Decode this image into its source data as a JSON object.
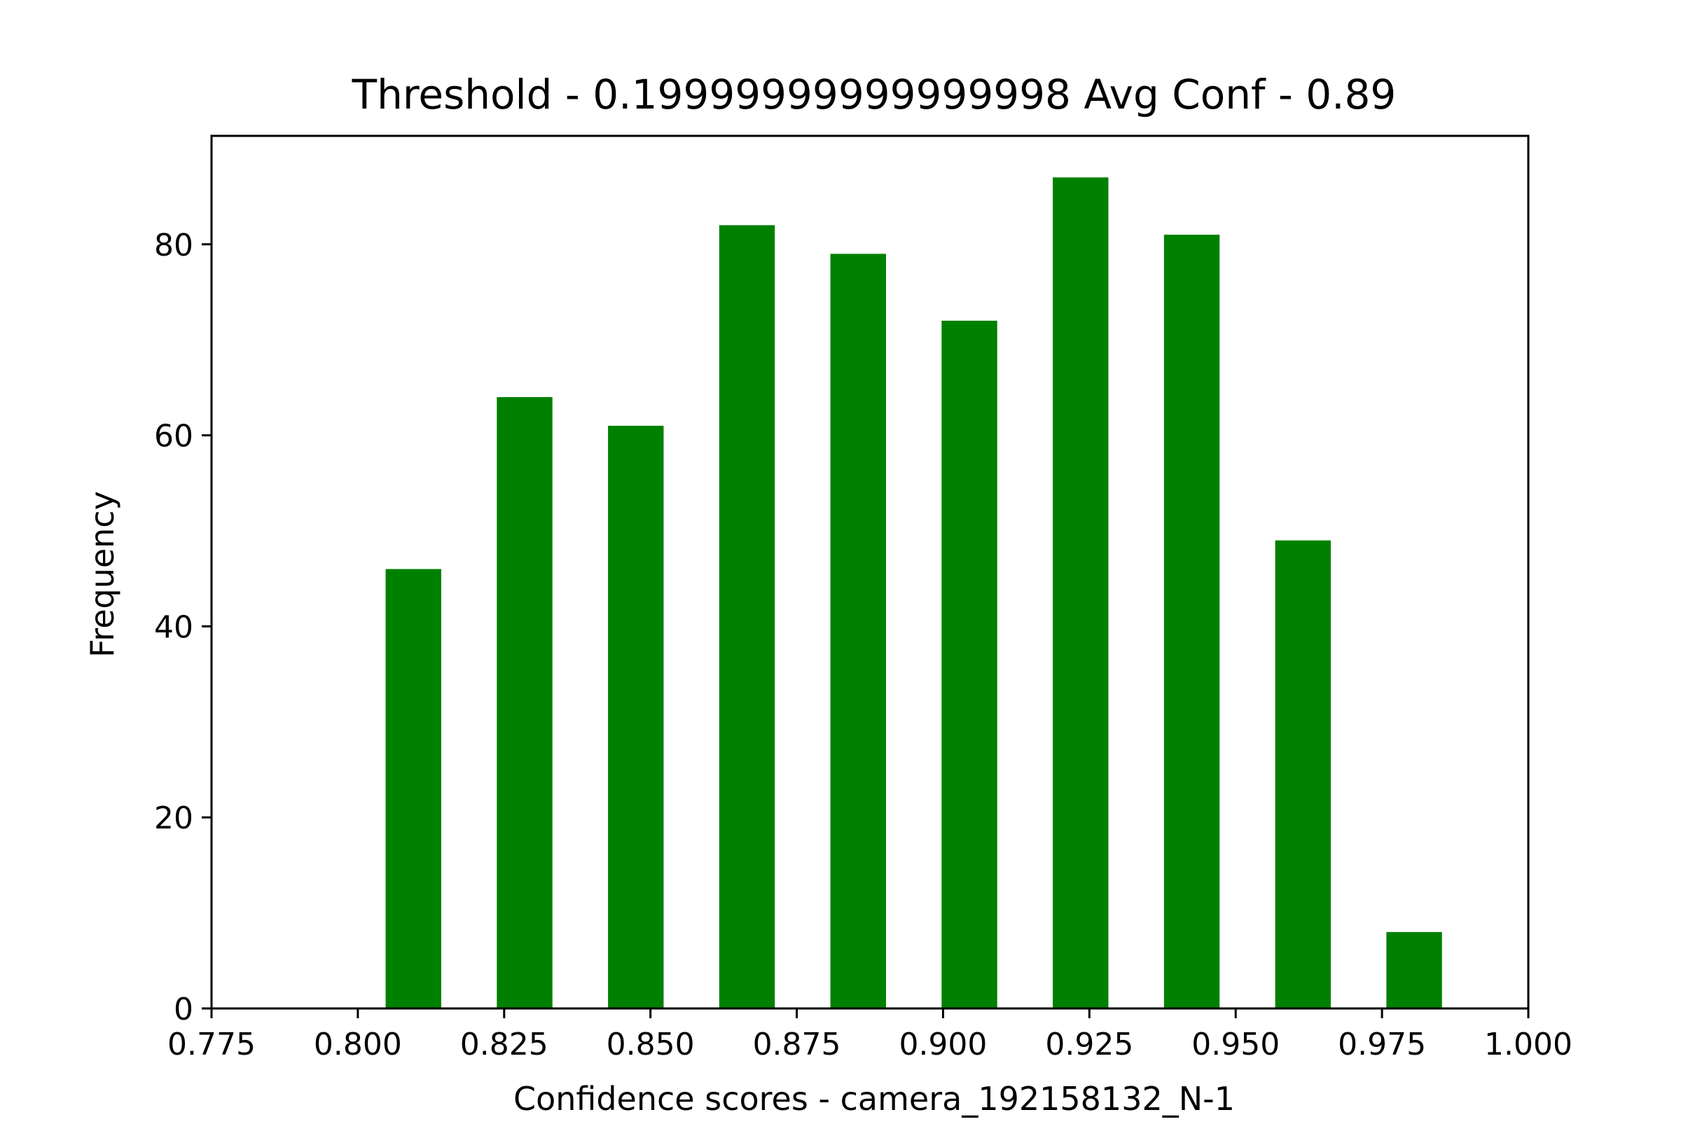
{
  "chart_data": {
    "type": "bar",
    "title": "Threshold - 0.19999999999999998 Avg Conf - 0.89",
    "xlabel": "Confidence scores - camera_192158132_N-1",
    "ylabel": "Frequency",
    "xlim": [
      0.775,
      1.0
    ],
    "ylim": [
      0,
      91.35
    ],
    "x_ticks": [
      0.775,
      0.8,
      0.825,
      0.85,
      0.875,
      0.9,
      0.925,
      0.95,
      0.975,
      1.0
    ],
    "x_tick_labels": [
      "0.775",
      "0.800",
      "0.825",
      "0.850",
      "0.875",
      "0.900",
      "0.925",
      "0.950",
      "0.975",
      "1.000"
    ],
    "y_ticks": [
      0,
      20,
      40,
      60,
      80
    ],
    "y_tick_labels": [
      "0",
      "20",
      "40",
      "60",
      "80"
    ],
    "bar_color": "#008000",
    "bin_width": 0.0095,
    "bin_centers": [
      0.8095,
      0.8285,
      0.8475,
      0.8665,
      0.8855,
      0.9045,
      0.9235,
      0.9425,
      0.9615,
      0.9805
    ],
    "values": [
      46,
      64,
      61,
      82,
      79,
      72,
      87,
      81,
      49,
      8
    ],
    "grid": false,
    "legend": "none"
  }
}
